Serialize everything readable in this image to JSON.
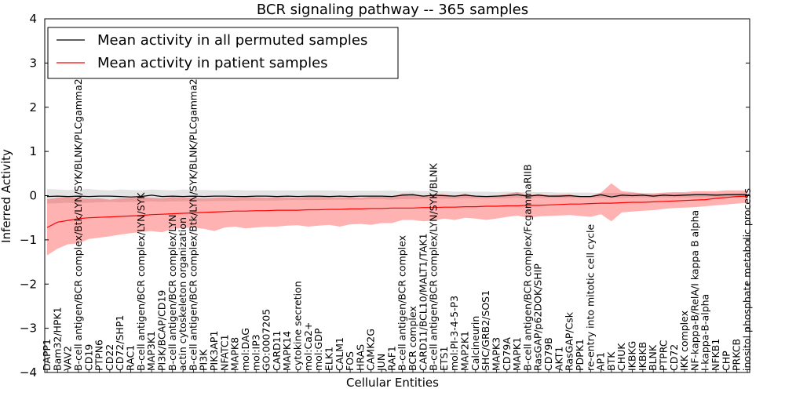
{
  "chart_data": {
    "type": "line",
    "title": "BCR signaling pathway -- 365 samples",
    "xlabel": "Cellular Entities",
    "ylabel": "Inferred Activity",
    "ylim": [
      -4,
      4
    ],
    "yticks": [
      -4,
      -3,
      -2,
      -1,
      0,
      1,
      2,
      3,
      4
    ],
    "grid": false,
    "legend_position": "upper-left",
    "categories": [
      "DAPP1",
      "Bam32/HPK1",
      "VAV2",
      "B-cell antigen/BCR complex/Btk/LYN/SYK/BLNK/PLCgamma2",
      "CD19",
      "PTPN6",
      "CD22",
      "CD72/SHP1",
      "RAC1",
      "B-cell antigen/BCR complex/LYN/SYK",
      "MAP3K1",
      "PI3K/BCAP/CD19",
      "B-cell antigen/BCR complex/LYN",
      "actin cytoskeleton organization",
      "B-cell antigen/BCR complex/Btk/LYN/SYK/BLNK/PLCgamma2",
      "PI3K",
      "PIK3AP1",
      "NFATC1",
      "MAPK8",
      "mol:DAG",
      "mol:IP3",
      "GO:0007205",
      "CARD11",
      "MAPK14",
      "cytokine secretion",
      "mol:Ca2+",
      "mol:GDP",
      "ELK1",
      "CALM1",
      "FOS",
      "HRAS",
      "CAMK2G",
      "JUN",
      "RAF1",
      "B-cell antigen/BCR complex",
      "BCR complex",
      "CARD11/BCL10/MALT1/TAK1",
      "B-cell antigen/BCR complex/LYN/SYK/BLNK",
      "ETS1",
      "mol:PI-3-4-5-P3",
      "MAP2K1",
      "Calcineurin",
      "SHC/GRB2/SOS1",
      "MAPK3",
      "CD79A",
      "MAPK1",
      "B-cell antigen/BCR complex/FcgammaRIIB",
      "RasGAP/p62DOK/SHIP",
      "CD79B",
      "AKT1",
      "RasGAP/Csk",
      "PDPK1",
      "re-entry into mitotic cell cycle",
      "AP1",
      "BTK",
      "CHUK",
      "IKBKG",
      "IKBKB",
      "BLNK",
      "PTPRC",
      "CD72",
      "IKK complex",
      "NF-kappa-B/RelA/I kappa B alpha",
      "I-kappa-B-alpha",
      "NFKB1",
      "CHP",
      "PRKCB",
      "inositol phosphate metabolic process"
    ],
    "series": [
      {
        "name": "Mean activity in all permuted samples",
        "color": "#000000",
        "values": [
          -0.02,
          -0.01,
          -0.02,
          -0.01,
          -0.02,
          -0.01,
          -0.01,
          -0.02,
          -0.03,
          -0.02,
          0.01,
          -0.02,
          -0.01,
          -0.02,
          -0.01,
          -0.02,
          -0.01,
          -0.01,
          -0.02,
          -0.02,
          -0.01,
          -0.01,
          -0.02,
          -0.01,
          -0.02,
          -0.01,
          -0.01,
          -0.02,
          -0.01,
          -0.02,
          -0.01,
          -0.01,
          -0.01,
          -0.02,
          0.01,
          0.02,
          -0.01,
          0.01,
          0.0,
          -0.01,
          0.01,
          -0.01,
          -0.02,
          -0.01,
          0.0,
          0.02,
          -0.01,
          0.01,
          -0.01,
          -0.01,
          0.0,
          -0.02,
          -0.02,
          0.02,
          -0.03,
          0.01,
          0.0,
          0.01,
          -0.01,
          0.01,
          0.0,
          0.01,
          0.02,
          0.02,
          0.01,
          0.02,
          0.02,
          0.02
        ],
        "band": {
          "upper": [
            0.15,
            0.14,
            0.13,
            0.14,
            0.15,
            0.13,
            0.12,
            0.14,
            0.13,
            0.12,
            0.14,
            0.13,
            0.12,
            0.14,
            0.13,
            0.13,
            0.12,
            0.12,
            0.13,
            0.12,
            0.12,
            0.12,
            0.12,
            0.12,
            0.12,
            0.12,
            0.12,
            0.12,
            0.11,
            0.11,
            0.11,
            0.11,
            0.11,
            0.12,
            0.1,
            0.11,
            0.1,
            0.1,
            0.1,
            0.09,
            0.09,
            0.09,
            0.09,
            0.08,
            0.09,
            0.08,
            0.08,
            0.08,
            0.08,
            0.07,
            0.07,
            0.07,
            0.07,
            0.06,
            0.06,
            0.06,
            0.06,
            0.06,
            0.05,
            0.05,
            0.05,
            0.05,
            0.05,
            0.05,
            0.05,
            0.05,
            0.06,
            0.07
          ],
          "lower": [
            -0.18,
            -0.17,
            -0.16,
            -0.17,
            -0.16,
            -0.15,
            -0.14,
            -0.15,
            -0.14,
            -0.14,
            -0.13,
            -0.14,
            -0.13,
            -0.13,
            -0.12,
            -0.13,
            -0.12,
            -0.12,
            -0.12,
            -0.11,
            -0.11,
            -0.11,
            -0.11,
            -0.1,
            -0.1,
            -0.1,
            -0.1,
            -0.09,
            -0.09,
            -0.09,
            -0.09,
            -0.08,
            -0.08,
            -0.09,
            -0.08,
            -0.08,
            -0.07,
            -0.07,
            -0.07,
            -0.07,
            -0.06,
            -0.06,
            -0.06,
            -0.06,
            -0.06,
            -0.05,
            -0.05,
            -0.05,
            -0.05,
            -0.05,
            -0.05,
            -0.05,
            -0.05,
            -0.05,
            -0.05,
            -0.05,
            -0.04,
            -0.04,
            -0.04,
            -0.04,
            -0.04,
            -0.04,
            -0.04,
            -0.04,
            -0.03,
            -0.03,
            -0.03,
            -0.03
          ]
        }
      },
      {
        "name": "Mean activity in patient samples",
        "color": "#ff0000",
        "values": [
          -0.72,
          -0.6,
          -0.56,
          -0.52,
          -0.5,
          -0.49,
          -0.48,
          -0.47,
          -0.46,
          -0.45,
          -0.43,
          -0.42,
          -0.41,
          -0.4,
          -0.39,
          -0.38,
          -0.37,
          -0.36,
          -0.35,
          -0.35,
          -0.34,
          -0.34,
          -0.33,
          -0.33,
          -0.33,
          -0.32,
          -0.32,
          -0.31,
          -0.31,
          -0.3,
          -0.3,
          -0.29,
          -0.29,
          -0.28,
          -0.28,
          -0.28,
          -0.27,
          -0.27,
          -0.26,
          -0.26,
          -0.25,
          -0.25,
          -0.24,
          -0.24,
          -0.23,
          -0.23,
          -0.22,
          -0.22,
          -0.21,
          -0.2,
          -0.19,
          -0.19,
          -0.18,
          -0.17,
          -0.17,
          -0.16,
          -0.15,
          -0.15,
          -0.14,
          -0.13,
          -0.12,
          -0.11,
          -0.1,
          -0.09,
          -0.06,
          -0.04,
          -0.02,
          -0.01
        ],
        "band": {
          "upper": [
            -0.08,
            -0.05,
            -0.02,
            -0.05,
            -0.07,
            -0.06,
            -0.09,
            -0.06,
            -0.05,
            -0.04,
            -0.05,
            -0.06,
            -0.03,
            -0.04,
            -0.05,
            -0.06,
            -0.05,
            -0.04,
            -0.05,
            -0.03,
            -0.04,
            -0.05,
            -0.03,
            -0.04,
            -0.05,
            -0.02,
            -0.01,
            -0.03,
            -0.04,
            -0.03,
            -0.05,
            -0.02,
            -0.02,
            -0.03,
            0.05,
            0.05,
            -0.02,
            0.03,
            0.03,
            -0.01,
            0.05,
            -0.02,
            -0.03,
            -0.01,
            0.04,
            0.08,
            0.01,
            0.04,
            0.01,
            0.02,
            0.03,
            -0.03,
            -0.01,
            0.07,
            0.28,
            0.1,
            0.08,
            0.05,
            0.05,
            0.07,
            0.08,
            0.08,
            0.1,
            0.1,
            0.1,
            0.12,
            0.12,
            0.12
          ],
          "lower": [
            -1.35,
            -1.2,
            -1.1,
            -1.08,
            -0.98,
            -0.95,
            -0.92,
            -0.88,
            -0.85,
            -0.82,
            -0.8,
            -0.83,
            -0.75,
            -0.73,
            -0.72,
            -0.75,
            -0.8,
            -0.72,
            -0.7,
            -0.74,
            -0.72,
            -0.7,
            -0.7,
            -0.68,
            -0.67,
            -0.7,
            -0.68,
            -0.66,
            -0.7,
            -0.65,
            -0.64,
            -0.66,
            -0.62,
            -0.62,
            -0.55,
            -0.55,
            -0.58,
            -0.56,
            -0.52,
            -0.55,
            -0.5,
            -0.52,
            -0.55,
            -0.52,
            -0.48,
            -0.45,
            -0.5,
            -0.47,
            -0.46,
            -0.45,
            -0.44,
            -0.46,
            -0.48,
            -0.42,
            -0.58,
            -0.38,
            -0.36,
            -0.34,
            -0.33,
            -0.3,
            -0.28,
            -0.27,
            -0.26,
            -0.24,
            -0.22,
            -0.2,
            -0.18,
            -0.16
          ]
        }
      }
    ]
  }
}
